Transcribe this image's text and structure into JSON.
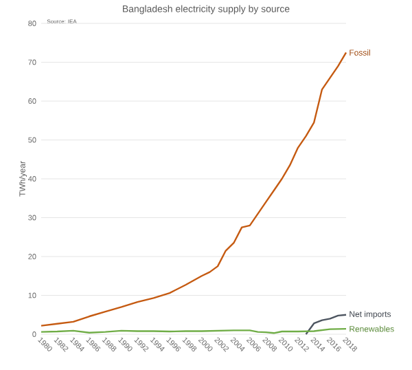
{
  "chart_data": {
    "type": "line",
    "title": "Bangladesh electricity supply by source",
    "ylabel": "TWh/year",
    "annotations": [
      "Source: IEA"
    ],
    "xlim": [
      1980,
      2018
    ],
    "ylim": [
      0,
      80
    ],
    "xticks": [
      1980,
      1982,
      1984,
      1986,
      1988,
      1990,
      1992,
      1994,
      1996,
      1998,
      2000,
      2002,
      2004,
      2006,
      2008,
      2010,
      2012,
      2014,
      2016,
      2018
    ],
    "yticks": [
      0,
      10,
      20,
      30,
      40,
      50,
      60,
      70,
      80
    ],
    "grid": "y",
    "legend": false,
    "marker": "none",
    "line_style": "solid",
    "series": [
      {
        "name": "Fossil",
        "color": "#c55a11",
        "x": [
          1980,
          1982,
          1984,
          1986,
          1988,
          1990,
          1992,
          1994,
          1996,
          1998,
          2000,
          2001,
          2002,
          2003,
          2004,
          2005,
          2006,
          2007,
          2008,
          2009,
          2010,
          2011,
          2012,
          2013,
          2014,
          2015,
          2016,
          2017,
          2018
        ],
        "values": [
          2.2,
          2.7,
          3.2,
          4.6,
          5.8,
          7,
          8.3,
          9.3,
          10.6,
          12.7,
          15,
          16,
          17.5,
          21.5,
          23.5,
          27.5,
          28,
          31,
          34,
          37,
          40,
          43.5,
          48,
          51,
          54.5,
          63,
          66,
          69,
          72.5
        ]
      },
      {
        "name": "Net imports",
        "color": "#4d5560",
        "x": [
          2013,
          2014,
          2015,
          2016,
          2017,
          2018
        ],
        "values": [
          0,
          2.8,
          3.6,
          4,
          4.8,
          5
        ]
      },
      {
        "name": "Renewables",
        "color": "#70ad47",
        "x": [
          1980,
          1982,
          1984,
          1986,
          1988,
          1990,
          1992,
          1994,
          1996,
          1998,
          2000,
          2002,
          2004,
          2006,
          2007,
          2008,
          2009,
          2010,
          2012,
          2014,
          2016,
          2018
        ],
        "values": [
          0.6,
          0.7,
          0.9,
          0.4,
          0.6,
          0.9,
          0.8,
          0.8,
          0.7,
          0.8,
          0.8,
          0.9,
          1,
          1,
          0.6,
          0.5,
          0.3,
          0.7,
          0.7,
          0.8,
          1.3,
          1.4
        ]
      }
    ]
  }
}
